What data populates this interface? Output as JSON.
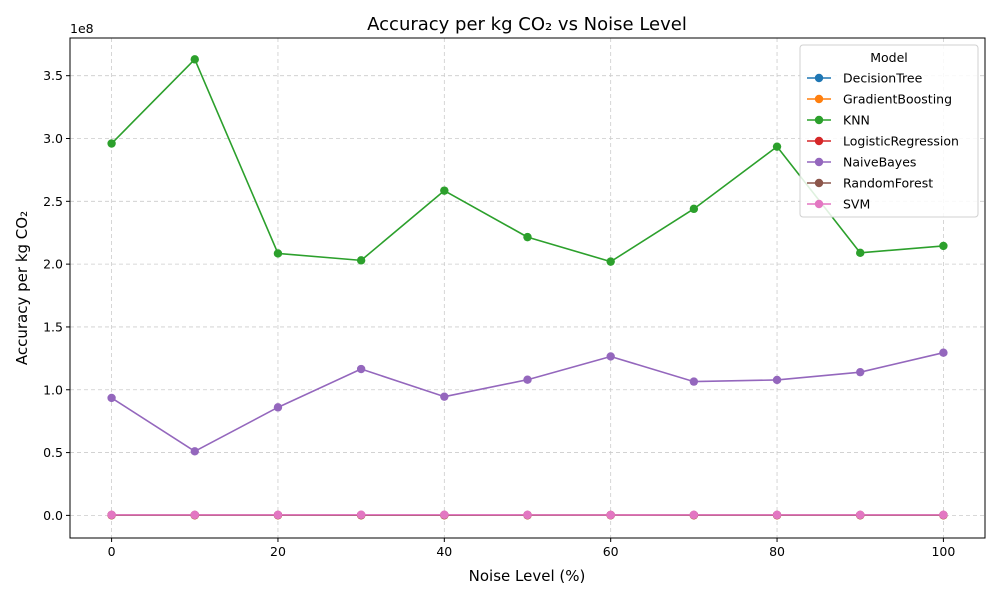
{
  "chart_data": {
    "type": "line",
    "title": "Accuracy per kg CO₂ vs Noise Level",
    "xlabel": "Noise Level (%)",
    "ylabel": "Accuracy per kg CO₂",
    "y_offset_label": "1e8",
    "y_scale_factor": 100000000,
    "xlim": [
      -5,
      105
    ],
    "ylim": [
      -0.18,
      3.8
    ],
    "x_ticks": [
      0,
      20,
      40,
      60,
      80,
      100
    ],
    "y_ticks": [
      0.0,
      0.5,
      1.0,
      1.5,
      2.0,
      2.5,
      3.0,
      3.5
    ],
    "grid": true,
    "legend_title": "Model",
    "legend_position": "top-right",
    "x": [
      0,
      10,
      20,
      30,
      40,
      50,
      60,
      70,
      80,
      90,
      100
    ],
    "series": [
      {
        "name": "DecisionTree",
        "color": "#1f77b4",
        "values": [
          0.002,
          0.002,
          0.002,
          0.002,
          0.002,
          0.002,
          0.002,
          0.002,
          0.002,
          0.002,
          0.002
        ]
      },
      {
        "name": "GradientBoosting",
        "color": "#ff7f0e",
        "values": [
          0.001,
          0.001,
          0.001,
          0.001,
          0.001,
          0.001,
          0.001,
          0.001,
          0.001,
          0.001,
          0.001
        ]
      },
      {
        "name": "KNN",
        "color": "#2ca02c",
        "values": [
          2.96,
          3.63,
          2.085,
          2.03,
          2.585,
          2.215,
          2.02,
          2.44,
          2.935,
          2.09,
          2.145
        ]
      },
      {
        "name": "LogisticRegression",
        "color": "#d62728",
        "values": [
          0.003,
          0.003,
          0.003,
          0.003,
          0.003,
          0.003,
          0.003,
          0.003,
          0.003,
          0.003,
          0.003
        ]
      },
      {
        "name": "NaiveBayes",
        "color": "#9467bd",
        "values": [
          0.935,
          0.51,
          0.86,
          1.165,
          0.945,
          1.08,
          1.265,
          1.065,
          1.078,
          1.14,
          1.295
        ]
      },
      {
        "name": "RandomForest",
        "color": "#8c564b",
        "values": [
          0.002,
          0.002,
          0.002,
          0.002,
          0.002,
          0.002,
          0.002,
          0.002,
          0.002,
          0.002,
          0.002
        ]
      },
      {
        "name": "SVM",
        "color": "#e377c2",
        "values": [
          0.004,
          0.004,
          0.004,
          0.005,
          0.005,
          0.004,
          0.003,
          0.004,
          0.004,
          0.004,
          0.004
        ]
      }
    ]
  }
}
